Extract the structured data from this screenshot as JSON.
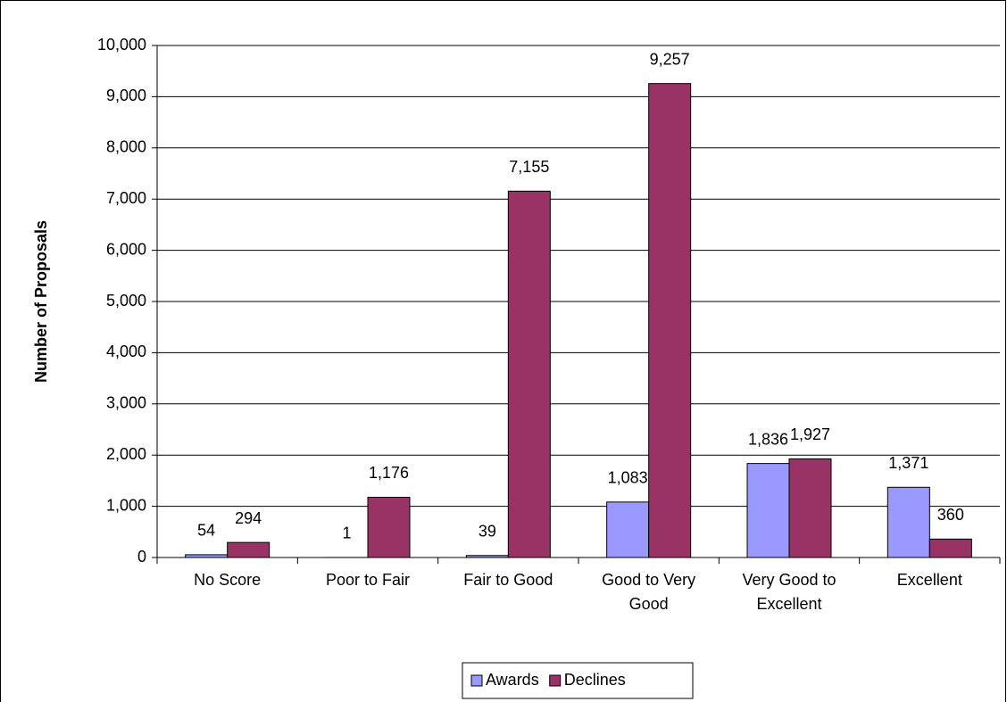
{
  "chart_data": {
    "type": "bar",
    "y_label": "Number of Proposals",
    "categories": [
      "No Score",
      "Poor to Fair",
      "Fair to Good",
      "Good to Very Good",
      "Very Good to Excellent",
      "Excellent"
    ],
    "series": [
      {
        "name": "Awards",
        "color": "#9999ff",
        "values": [
          54,
          1,
          39,
          1083,
          1836,
          1371
        ],
        "value_labels": [
          "54",
          "1",
          "39",
          "1,083",
          "1,836",
          "1,371"
        ]
      },
      {
        "name": "Declines",
        "color": "#993366",
        "values": [
          294,
          1176,
          7155,
          9257,
          1927,
          360
        ],
        "value_labels": [
          "294",
          "1,176",
          "7,155",
          "9,257",
          "1,927",
          "360"
        ]
      }
    ],
    "ylim": [
      0,
      10000
    ],
    "yticks": [
      0,
      {
        "value": 1000,
        "label": "1,000"
      },
      {
        "value": 2000,
        "label": "2,000"
      },
      {
        "value": 3000,
        "label": "3,000"
      },
      {
        "value": 4000,
        "label": "4,000"
      },
      {
        "value": 5000,
        "label": "5,000"
      },
      {
        "value": 6000,
        "label": "6,000"
      },
      {
        "value": 7000,
        "label": "7,000"
      },
      {
        "value": 8000,
        "label": "8,000"
      },
      {
        "value": 9000,
        "label": "9,000"
      },
      {
        "value": 10000,
        "label": "10,000"
      }
    ],
    "grid": true,
    "legend": "bottom"
  }
}
